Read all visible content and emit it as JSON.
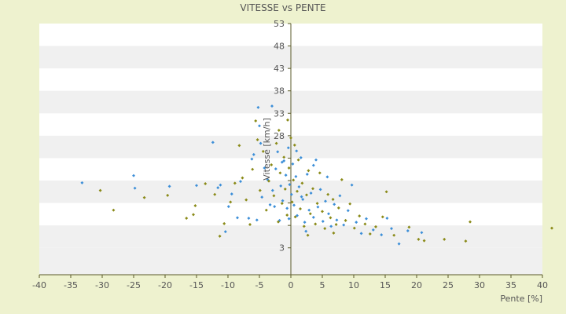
{
  "chart_data": {
    "type": "scatter",
    "title": "VITESSE vs PENTE",
    "xlabel": "Pente [%]",
    "ylabel": "Vitesse [km/h]",
    "xlim": [
      -40,
      40
    ],
    "ylim": [
      -3,
      53
    ],
    "x_ticks": [
      -40,
      -35,
      -30,
      -25,
      -20,
      -15,
      -10,
      -5,
      0,
      5,
      10,
      15,
      20,
      25,
      30,
      35,
      40
    ],
    "y_ticks": [
      3,
      8,
      13,
      18,
      23,
      28,
      33,
      38,
      43,
      48,
      53
    ],
    "y_tick_labels": [
      "3",
      "",
      "",
      "",
      "",
      "28",
      "33",
      "38",
      "43",
      "48",
      "53"
    ],
    "grid": "horizontal bands",
    "legend": "none",
    "colors": {
      "series_a": "#3d8fd8",
      "series_b": "#8a8a18",
      "band_light": "#ffffff",
      "band_dark": "#f0f0f0",
      "axis": "#5a5a28",
      "background": "#eef2cf"
    },
    "series": [
      {
        "color_key": "series_a",
        "points": [
          [
            -33.2,
            17.5
          ],
          [
            -25,
            19.1
          ],
          [
            -24.8,
            16.3
          ],
          [
            -19.3,
            16.7
          ],
          [
            -15,
            16.9
          ],
          [
            -12.4,
            26.5
          ],
          [
            -11.2,
            17
          ],
          [
            -11.6,
            16.4
          ],
          [
            -10.4,
            6.6
          ],
          [
            -9.9,
            12.2
          ],
          [
            -9.4,
            15
          ],
          [
            -8.5,
            9.7
          ],
          [
            -8,
            17.8
          ],
          [
            -6.7,
            9.6
          ],
          [
            -6.2,
            22.8
          ],
          [
            -5.9,
            23.8
          ],
          [
            -5.4,
            9.2
          ],
          [
            -5.2,
            34.3
          ],
          [
            -5,
            30.2
          ],
          [
            -4.6,
            14.3
          ],
          [
            -4.2,
            20.8
          ],
          [
            -3.7,
            18.2
          ],
          [
            -3.3,
            12.6
          ],
          [
            -2.9,
            15.8
          ],
          [
            -2.4,
            20.6
          ],
          [
            -2.1,
            24.4
          ],
          [
            -1.8,
            9.1
          ],
          [
            -1.6,
            16.8
          ],
          [
            -1.3,
            13.5
          ],
          [
            -1.1,
            22.4
          ],
          [
            -0.8,
            19.2
          ],
          [
            -0.6,
            11.8
          ],
          [
            -0.4,
            25.3
          ],
          [
            -0.2,
            17.1
          ],
          [
            0.1,
            14.9
          ],
          [
            0.3,
            21.7
          ],
          [
            0.5,
            12.5
          ],
          [
            0.8,
            18.9
          ],
          [
            1,
            10.2
          ],
          [
            1.3,
            16.6
          ],
          [
            1.6,
            23.1
          ],
          [
            1.9,
            13.8
          ],
          [
            2.2,
            8.7
          ],
          [
            2.6,
            19.4
          ],
          [
            2.9,
            11.4
          ],
          [
            3.2,
            15.2
          ],
          [
            3.6,
            9.8
          ],
          [
            4,
            22.6
          ],
          [
            4.3,
            12.1
          ],
          [
            4.7,
            16
          ],
          [
            5.1,
            8.9
          ],
          [
            5.5,
            13.4
          ],
          [
            6,
            10.6
          ],
          [
            6.4,
            7.8
          ],
          [
            6.9,
            12.7
          ],
          [
            7.3,
            9.2
          ],
          [
            7.8,
            14.6
          ],
          [
            8.4,
            8.1
          ],
          [
            9.1,
            11.3
          ],
          [
            9.7,
            17
          ],
          [
            10.4,
            8.7
          ],
          [
            11.2,
            6.2
          ],
          [
            12,
            9.5
          ],
          [
            13.1,
            7
          ],
          [
            14.4,
            5.9
          ],
          [
            15.3,
            9.6
          ],
          [
            16,
            7.3
          ],
          [
            17.2,
            3.9
          ],
          [
            18.6,
            6.8
          ],
          [
            20.8,
            6.4
          ],
          [
            -3,
            34.6
          ],
          [
            -1.4,
            22.1
          ],
          [
            0.9,
            24.6
          ],
          [
            -4.8,
            26.3
          ],
          [
            3.6,
            21.4
          ],
          [
            -2.6,
            12.2
          ],
          [
            1.7,
            14.4
          ],
          [
            2.4,
            6.7
          ],
          [
            5.8,
            18.8
          ],
          [
            -0.3,
            9.5
          ]
        ]
      },
      {
        "color_key": "series_b",
        "points": [
          [
            -30.3,
            15.8
          ],
          [
            -28.2,
            11.4
          ],
          [
            -23.3,
            14.2
          ],
          [
            -19.6,
            14.7
          ],
          [
            -16.6,
            9.6
          ],
          [
            -15.5,
            10.4
          ],
          [
            -15.2,
            12.4
          ],
          [
            -13.6,
            17.3
          ],
          [
            -12.1,
            14.9
          ],
          [
            -11.3,
            5.6
          ],
          [
            -10.6,
            8.4
          ],
          [
            -9.6,
            13.2
          ],
          [
            -8.9,
            17.4
          ],
          [
            -8.2,
            25.8
          ],
          [
            -7.7,
            18.6
          ],
          [
            -7.1,
            13.7
          ],
          [
            -6.5,
            8.2
          ],
          [
            -6.1,
            20.5
          ],
          [
            -5.6,
            31.3
          ],
          [
            -5.3,
            27.1
          ],
          [
            -4.9,
            15.8
          ],
          [
            -4.4,
            24.5
          ],
          [
            -3.9,
            11.4
          ],
          [
            -3.5,
            17.9
          ],
          [
            -3.1,
            21.5
          ],
          [
            -2.7,
            14.6
          ],
          [
            -2.3,
            26.3
          ],
          [
            -2,
            8.8
          ],
          [
            -1.7,
            19.7
          ],
          [
            -1.4,
            12.9
          ],
          [
            -1.1,
            23.2
          ],
          [
            -0.9,
            16.1
          ],
          [
            -0.6,
            10.3
          ],
          [
            -0.3,
            20.8
          ],
          [
            0,
            27.5
          ],
          [
            0.2,
            13.2
          ],
          [
            0.4,
            18.1
          ],
          [
            0.7,
            9.9
          ],
          [
            1,
            15.6
          ],
          [
            1.2,
            22.6
          ],
          [
            1.5,
            11.7
          ],
          [
            1.8,
            17.4
          ],
          [
            2.1,
            7.8
          ],
          [
            2.5,
            14.8
          ],
          [
            2.8,
            20.2
          ],
          [
            3.1,
            10.6
          ],
          [
            3.5,
            16.2
          ],
          [
            3.9,
            8.3
          ],
          [
            4.2,
            12.9
          ],
          [
            4.6,
            19.7
          ],
          [
            5,
            11.1
          ],
          [
            5.4,
            7.3
          ],
          [
            5.9,
            14.9
          ],
          [
            6.3,
            9.7
          ],
          [
            6.7,
            13.8
          ],
          [
            7.2,
            8.2
          ],
          [
            7.6,
            11.9
          ],
          [
            8.1,
            18.2
          ],
          [
            8.7,
            9.1
          ],
          [
            9.4,
            12.8
          ],
          [
            10.1,
            7.4
          ],
          [
            10.9,
            10.1
          ],
          [
            11.8,
            8.3
          ],
          [
            12.6,
            6.1
          ],
          [
            13.5,
            7.7
          ],
          [
            14.6,
            9.9
          ],
          [
            15.2,
            15.5
          ],
          [
            16.4,
            5.8
          ],
          [
            18.8,
            7.6
          ],
          [
            20.3,
            4.9
          ],
          [
            21.2,
            4.6
          ],
          [
            24.4,
            4.9
          ],
          [
            27.8,
            4.5
          ],
          [
            28.5,
            8.8
          ],
          [
            41.5,
            7.4
          ],
          [
            -0.5,
            31.5
          ],
          [
            0.6,
            25.9
          ],
          [
            -1.9,
            29.2
          ],
          [
            2.7,
            5.8
          ],
          [
            6.8,
            6.3
          ]
        ]
      }
    ]
  }
}
